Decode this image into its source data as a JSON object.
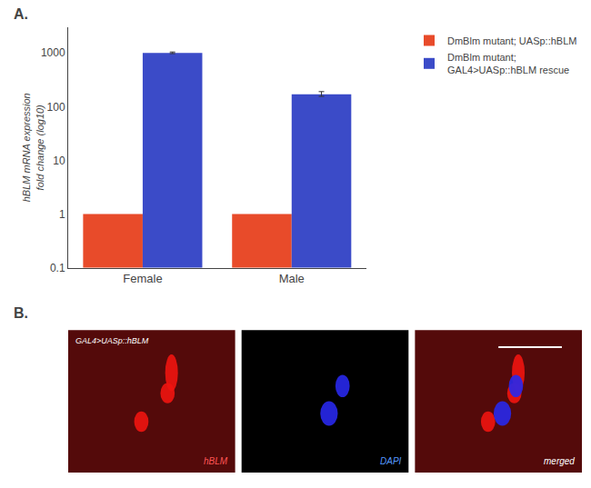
{
  "chart_data": {
    "type": "bar",
    "categories": [
      "Female",
      "Male"
    ],
    "series": [
      {
        "name": "DmBlm mutant; UASp::hBLM",
        "color": "#E84B2A",
        "values": [
          1.0,
          1.0
        ]
      },
      {
        "name": "DmBlm mutant;\nGAL4>UASp::hBLM rescue",
        "color": "#3B4BC8",
        "values": [
          1000.0,
          170.0
        ],
        "errors_pos": [
          40.0,
          20.0
        ],
        "errors_neg": [
          30.0,
          15.0
        ]
      }
    ],
    "ylabel": "hBLM mRNA expression\nfold change (log10)",
    "log": "y",
    "ylim": [
      0.1,
      3000
    ],
    "yticks": [
      0.1,
      1,
      10,
      100,
      1000
    ],
    "grid": false,
    "legend": "upper right",
    "annotations": [
      "A.",
      "B.",
      "GAL4>UASp::hBLM",
      "hBLM",
      "DAPI",
      "merged"
    ]
  }
}
